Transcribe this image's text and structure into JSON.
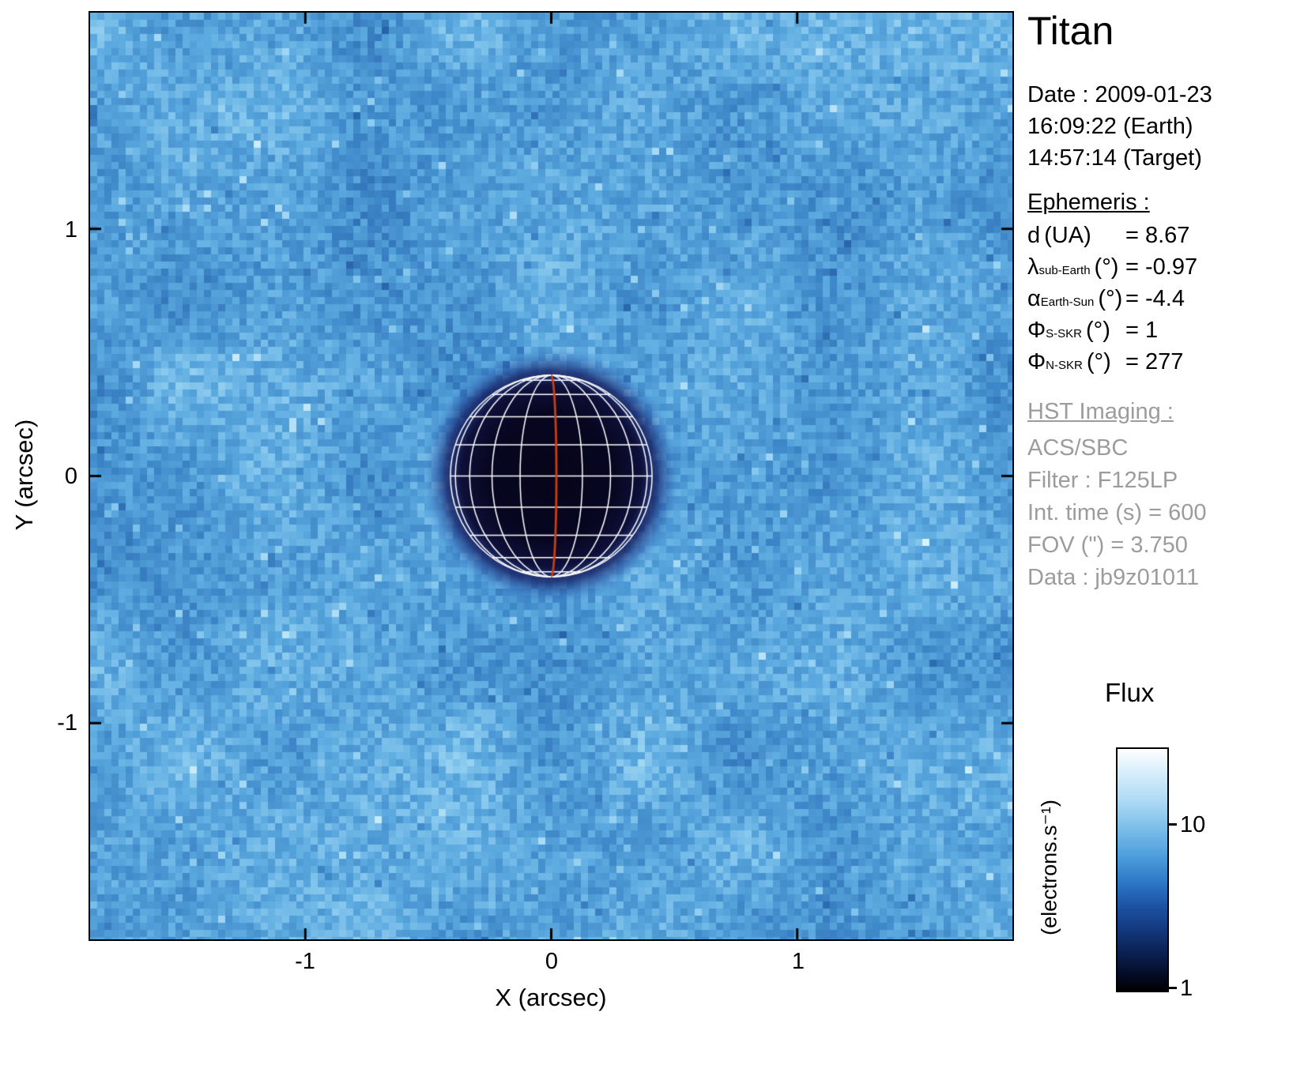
{
  "figure": {
    "title": "Titan",
    "date_line1": "Date : 2009-01-23",
    "date_line2": "16:09:22 (Earth)",
    "date_line3": "14:57:14 (Target)",
    "ephemeris_heading": "Ephemeris :",
    "ephemeris": [
      {
        "sym": "d",
        "sub": "",
        "paren": "(UA)",
        "value": "= 8.67"
      },
      {
        "sym": "λ",
        "sub": "sub-Earth",
        "paren": "(°)",
        "value": "= -0.97"
      },
      {
        "sym": "α",
        "sub": "Earth-Sun",
        "paren": "(°)",
        "value": "= -4.4"
      },
      {
        "sym": "Φ",
        "sub": "S-SKR",
        "paren": "(°)",
        "value": "= 1"
      },
      {
        "sym": "Φ",
        "sub": "N-SKR",
        "paren": "(°)",
        "value": "= 277"
      }
    ],
    "hst_heading": "HST Imaging :",
    "hst_lines": [
      "ACS/SBC",
      "Filter : F125LP",
      "Int. time (s) = 600",
      "FOV (\") = 3.750",
      "Data : jb9z01011"
    ]
  },
  "colorbar": {
    "title": "Flux",
    "unit": "(electrons.s⁻¹)",
    "ticks": [
      "10",
      "1"
    ]
  },
  "chart_data": {
    "type": "heatmap",
    "title": "Titan — HST ACS/SBC F125LP image, 2009-01-23 16:09:22 (Earth)",
    "xlabel": "X (arcsec)",
    "ylabel": "Y (arcsec)",
    "xlim": [
      -1.875,
      1.875
    ],
    "ylim": [
      -1.875,
      1.875
    ],
    "x_ticks": [
      -1,
      0,
      1
    ],
    "y_ticks": [
      -1,
      0,
      1
    ],
    "x_tick_labels": [
      "-1",
      "0",
      "1"
    ],
    "y_tick_labels": [
      "1",
      "0",
      "-1"
    ],
    "grid": false,
    "background": "speckled light-blue sky noise, flux of order a few electrons per second",
    "planet": {
      "name": "Titan",
      "center_arcsec": [
        0,
        0
      ],
      "radius_arcsec": 0.41,
      "disk_flux": "~1 electron/s (near black disk with soft dark halo)",
      "grid_color": "#ffffff",
      "grid_lat_step_deg": 18,
      "grid_lon_step_deg": 18,
      "meridian_color": "#cc3d12"
    },
    "colorbar": {
      "scale": "log",
      "min": 1,
      "max": 28,
      "tick_values": [
        10,
        1
      ],
      "label": "Flux (electrons.s⁻¹)"
    }
  }
}
